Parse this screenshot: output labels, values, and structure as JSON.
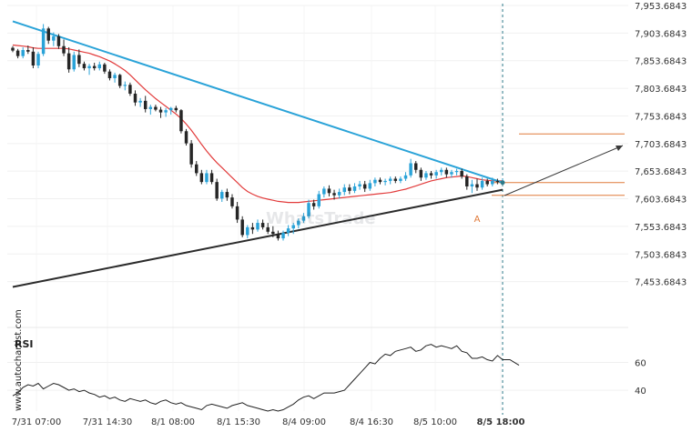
{
  "chart_data": {
    "type": "candlestick",
    "price_axis": {
      "ticks": [
        "7,953.6843",
        "7,903.6843",
        "7,853.6843",
        "7,803.6843",
        "7,753.6843",
        "7,703.6843",
        "7,653.6843",
        "7,603.6843",
        "7,553.6843",
        "7,503.6843",
        "7,453.6843"
      ],
      "range": [
        7403.6843,
        7953.6843
      ]
    },
    "time_axis": {
      "ticks": [
        "7/31 07:00",
        "7/31 14:30",
        "8/1 08:00",
        "8/1 15:30",
        "8/4 09:00",
        "8/4 16:30",
        "8/5 10:00",
        "8/5 18:00"
      ],
      "highlight": "8/5 18:00"
    },
    "candles": [
      [
        7877,
        7880,
        7869,
        7872
      ],
      [
        7872,
        7875,
        7858,
        7862
      ],
      [
        7862,
        7878,
        7858,
        7873
      ],
      [
        7873,
        7881,
        7866,
        7870
      ],
      [
        7870,
        7878,
        7840,
        7845
      ],
      [
        7845,
        7870,
        7840,
        7866
      ],
      [
        7866,
        7920,
        7862,
        7912
      ],
      [
        7912,
        7915,
        7884,
        7890
      ],
      [
        7890,
        7905,
        7880,
        7898
      ],
      [
        7898,
        7902,
        7875,
        7880
      ],
      [
        7880,
        7892,
        7862,
        7867
      ],
      [
        7867,
        7878,
        7832,
        7838
      ],
      [
        7838,
        7870,
        7834,
        7864
      ],
      [
        7864,
        7874,
        7842,
        7848
      ],
      [
        7848,
        7852,
        7836,
        7840
      ],
      [
        7840,
        7848,
        7828,
        7844
      ],
      [
        7844,
        7850,
        7836,
        7840
      ],
      [
        7840,
        7852,
        7836,
        7847
      ],
      [
        7847,
        7850,
        7830,
        7834
      ],
      [
        7834,
        7838,
        7818,
        7822
      ],
      [
        7822,
        7832,
        7814,
        7828
      ],
      [
        7828,
        7830,
        7804,
        7808
      ],
      [
        7808,
        7816,
        7800,
        7810
      ],
      [
        7810,
        7814,
        7790,
        7794
      ],
      [
        7794,
        7800,
        7772,
        7778
      ],
      [
        7778,
        7786,
        7770,
        7781
      ],
      [
        7781,
        7790,
        7760,
        7766
      ],
      [
        7766,
        7774,
        7756,
        7770
      ],
      [
        7770,
        7774,
        7762,
        7765
      ],
      [
        7765,
        7770,
        7750,
        7760
      ],
      [
        7760,
        7768,
        7752,
        7764
      ],
      [
        7764,
        7770,
        7756,
        7768
      ],
      [
        7768,
        7772,
        7760,
        7764
      ],
      [
        7764,
        7766,
        7722,
        7726
      ],
      [
        7726,
        7730,
        7700,
        7704
      ],
      [
        7704,
        7710,
        7660,
        7666
      ],
      [
        7666,
        7672,
        7645,
        7650
      ],
      [
        7650,
        7656,
        7630,
        7634
      ],
      [
        7634,
        7656,
        7630,
        7650
      ],
      [
        7650,
        7656,
        7630,
        7634
      ],
      [
        7634,
        7640,
        7600,
        7604
      ],
      [
        7604,
        7620,
        7598,
        7616
      ],
      [
        7616,
        7622,
        7600,
        7606
      ],
      [
        7606,
        7612,
        7586,
        7590
      ],
      [
        7590,
        7598,
        7560,
        7566
      ],
      [
        7566,
        7572,
        7534,
        7538
      ],
      [
        7538,
        7556,
        7532,
        7552
      ],
      [
        7552,
        7560,
        7540,
        7548
      ],
      [
        7548,
        7566,
        7544,
        7560
      ],
      [
        7560,
        7566,
        7548,
        7552
      ],
      [
        7552,
        7560,
        7540,
        7544
      ],
      [
        7544,
        7554,
        7534,
        7540
      ],
      [
        7540,
        7546,
        7528,
        7532
      ],
      [
        7532,
        7546,
        7528,
        7542
      ],
      [
        7542,
        7556,
        7536,
        7550
      ],
      [
        7550,
        7560,
        7540,
        7556
      ],
      [
        7556,
        7568,
        7550,
        7564
      ],
      [
        7564,
        7578,
        7560,
        7572
      ],
      [
        7572,
        7602,
        7568,
        7596
      ],
      [
        7596,
        7602,
        7584,
        7590
      ],
      [
        7590,
        7618,
        7586,
        7612
      ],
      [
        7612,
        7626,
        7606,
        7622
      ],
      [
        7622,
        7628,
        7608,
        7614
      ],
      [
        7614,
        7620,
        7602,
        7610
      ],
      [
        7610,
        7622,
        7604,
        7616
      ],
      [
        7616,
        7630,
        7610,
        7624
      ],
      [
        7624,
        7630,
        7612,
        7618
      ],
      [
        7618,
        7632,
        7614,
        7626
      ],
      [
        7626,
        7636,
        7620,
        7630
      ],
      [
        7630,
        7636,
        7616,
        7622
      ],
      [
        7622,
        7638,
        7618,
        7632
      ],
      [
        7632,
        7642,
        7626,
        7638
      ],
      [
        7638,
        7642,
        7630,
        7634
      ],
      [
        7634,
        7640,
        7628,
        7636
      ],
      [
        7636,
        7644,
        7630,
        7640
      ],
      [
        7640,
        7644,
        7632,
        7636
      ],
      [
        7636,
        7644,
        7632,
        7640
      ],
      [
        7640,
        7652,
        7636,
        7646
      ],
      [
        7646,
        7676,
        7642,
        7668
      ],
      [
        7668,
        7672,
        7650,
        7656
      ],
      [
        7656,
        7660,
        7636,
        7642
      ],
      [
        7642,
        7654,
        7638,
        7650
      ],
      [
        7650,
        7654,
        7640,
        7646
      ],
      [
        7646,
        7656,
        7640,
        7652
      ],
      [
        7652,
        7660,
        7646,
        7656
      ],
      [
        7656,
        7660,
        7642,
        7648
      ],
      [
        7648,
        7656,
        7642,
        7652
      ],
      [
        7652,
        7658,
        7646,
        7654
      ],
      [
        7654,
        7658,
        7640,
        7644
      ],
      [
        7644,
        7648,
        7620,
        7626
      ],
      [
        7626,
        7638,
        7614,
        7630
      ],
      [
        7630,
        7640,
        7618,
        7624
      ],
      [
        7624,
        7642,
        7620,
        7636
      ],
      [
        7636,
        7640,
        7626,
        7630
      ],
      [
        7630,
        7642,
        7626,
        7636
      ],
      [
        7636,
        7640,
        7630,
        7634
      ],
      [
        7634,
        7640,
        7630,
        7636
      ]
    ],
    "moving_average": [
      7882,
      7881,
      7880,
      7879,
      7877,
      7876,
      7876,
      7876,
      7876,
      7876,
      7876,
      7875,
      7873,
      7871,
      7869,
      7867,
      7864,
      7861,
      7857,
      7853,
      7848,
      7842,
      7836,
      7828,
      7819,
      7810,
      7801,
      7793,
      7785,
      7778,
      7771,
      7764,
      7757,
      7749,
      7739,
      7728,
      7715,
      7702,
      7690,
      7679,
      7669,
      7660,
      7651,
      7642,
      7633,
      7624,
      7617,
      7612,
      7608,
      7605,
      7603,
      7601,
      7599,
      7598,
      7597,
      7597,
      7597,
      7598,
      7599,
      7600,
      7601,
      7602,
      7603,
      7604,
      7605,
      7606,
      7607,
      7608,
      7609,
      7610,
      7611,
      7612,
      7613,
      7614,
      7615,
      7617,
      7619,
      7621,
      7624,
      7627,
      7630,
      7633,
      7636,
      7638,
      7640,
      7642,
      7643,
      7644,
      7645,
      7644,
      7642,
      7640,
      7638,
      7637,
      7636,
      7636,
      7636
    ],
    "trendlines": [
      {
        "role": "upper",
        "from": [
          0,
          7925
        ],
        "to": [
          96,
          7633
        ]
      },
      {
        "role": "lower",
        "from": [
          0,
          7444
        ],
        "to": [
          96,
          7620
        ]
      }
    ],
    "resistance_level": 7633,
    "support_level": 7610,
    "target_level": 7721,
    "breakout_label": "A",
    "rsi": {
      "label": "RSI",
      "ticks": [
        60,
        40
      ],
      "range": [
        25,
        80
      ],
      "values": [
        36,
        38,
        42,
        44,
        43,
        45,
        41,
        43,
        45,
        44,
        42,
        40,
        41,
        39,
        40,
        38,
        37,
        35,
        36,
        34,
        35,
        33,
        32,
        34,
        33,
        32,
        33,
        31,
        30,
        32,
        33,
        31,
        30,
        31,
        29,
        28,
        27,
        26,
        29,
        30,
        29,
        28,
        27,
        29,
        30,
        31,
        29,
        28,
        27,
        26,
        25,
        26,
        25,
        26,
        28,
        30,
        33,
        35,
        36,
        34,
        36,
        38,
        38,
        38,
        39,
        40,
        44,
        48,
        52,
        56,
        60,
        59,
        63,
        66,
        65,
        68,
        69,
        70,
        71,
        68,
        69,
        72,
        73,
        71,
        72,
        71,
        70,
        72,
        68,
        67,
        63,
        63,
        64,
        62,
        61,
        65,
        62
      ],
      "extend": [
        62,
        62
      ]
    },
    "colors": {
      "bull": "#2aa3d8",
      "bear": "#262626",
      "ma": "#e23b3b",
      "upper_trend": "#2aa3d8",
      "lower_trend": "#2b2b2b",
      "level": "#e07a3a",
      "marker": "#2d7a8a"
    }
  },
  "watermark": {
    "side": "www.autochartist.com",
    "brand": "WhatsTrade"
  }
}
